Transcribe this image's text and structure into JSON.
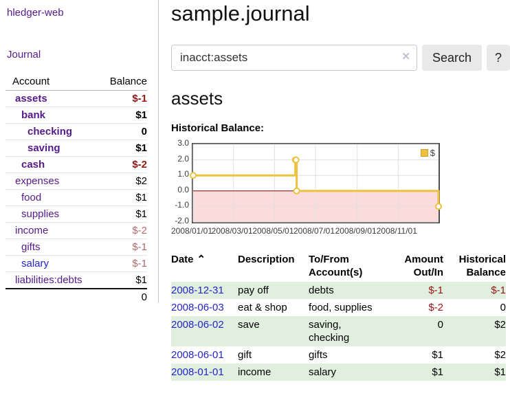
{
  "app": {
    "brand": "hledger-web"
  },
  "sidebar": {
    "journal_link": "Journal",
    "accounts": {
      "col_account": "Account",
      "col_balance": "Balance",
      "rows": [
        {
          "name": "assets",
          "balance": "$-1",
          "indent": 0,
          "bold": true,
          "name_style": "purple",
          "balance_style": "neg-strong"
        },
        {
          "name": "bank",
          "balance": "$1",
          "indent": 1,
          "bold": true,
          "name_style": "purple",
          "balance_style": "plain"
        },
        {
          "name": "checking",
          "balance": "0",
          "indent": 2,
          "bold": true,
          "name_style": "purple",
          "balance_style": "plain"
        },
        {
          "name": "saving",
          "balance": "$1",
          "indent": 2,
          "bold": true,
          "name_style": "purple",
          "balance_style": "plain"
        },
        {
          "name": "cash",
          "balance": "$-2",
          "indent": 1,
          "bold": true,
          "name_style": "purple",
          "balance_style": "neg-strong"
        },
        {
          "name": "expenses",
          "balance": "$2",
          "indent": 0,
          "bold": false,
          "name_style": "purple",
          "balance_style": "plain"
        },
        {
          "name": "food",
          "balance": "$1",
          "indent": 1,
          "bold": false,
          "name_style": "purple",
          "balance_style": "plain"
        },
        {
          "name": "supplies",
          "balance": "$1",
          "indent": 1,
          "bold": false,
          "name_style": "purple",
          "balance_style": "plain"
        },
        {
          "name": "income",
          "balance": "$-2",
          "indent": 0,
          "bold": false,
          "name_style": "purple",
          "balance_style": "neg-muted"
        },
        {
          "name": "gifts",
          "balance": "$-1",
          "indent": 1,
          "bold": false,
          "name_style": "purple",
          "balance_style": "neg-muted"
        },
        {
          "name": "salary",
          "balance": "$-1",
          "indent": 1,
          "bold": false,
          "name_style": "blue",
          "balance_style": "neg-muted"
        },
        {
          "name": "liabilities:debts",
          "balance": "$1",
          "indent": 0,
          "bold": false,
          "name_style": "purple",
          "balance_style": "plain"
        }
      ],
      "total": "0"
    }
  },
  "main": {
    "title": "sample.journal",
    "search": {
      "value": "inacct:assets",
      "clear_icon": "✕",
      "search_button": "Search",
      "help_button": "?"
    },
    "account_heading": "assets",
    "chart_title": "Historical Balance:"
  },
  "chart_data": {
    "type": "line",
    "mode": "step-after",
    "title": "Historical Balance:",
    "legend": "$",
    "legend_position": "top-right",
    "grid": true,
    "x_range": [
      "2008-01-01",
      "2008-12-31"
    ],
    "y_range": [
      -2,
      3
    ],
    "x_ticks": [
      "2008/01/01",
      "2008/03/01",
      "2008/05/01",
      "2008/07/01",
      "2008/09/01",
      "2008/11/01"
    ],
    "y_ticks": [
      "3.0",
      "2.0",
      "1.0",
      "0.0",
      "-1.0",
      "-2.0"
    ],
    "series": [
      {
        "name": "$",
        "color": "#edc240",
        "points": [
          {
            "date": "2008-01-01",
            "value": 1
          },
          {
            "date": "2008-06-01",
            "value": 2
          },
          {
            "date": "2008-06-02",
            "value": 2
          },
          {
            "date": "2008-06-03",
            "value": 0
          },
          {
            "date": "2008-12-31",
            "value": -1
          }
        ]
      }
    ],
    "grid_color": "#e0e0e0",
    "zero_line_color": "#8b0000",
    "negative_region_color": "#fbdcdc",
    "border_color": "#4d4d4d"
  },
  "register": {
    "headers": {
      "date": "Date",
      "sort_icon": "⌃",
      "description": "Description",
      "account": "To/From Account(s)",
      "amount": "Amount Out/In",
      "balance": "Historical Balance"
    },
    "rows": [
      {
        "date": "2008-12-31",
        "description": "pay off",
        "accounts": "debts",
        "amount": "$-1",
        "balance": "$-1"
      },
      {
        "date": "2008-06-03",
        "description": "eat & shop",
        "accounts": "food, supplies",
        "amount": "$-2",
        "balance": "0"
      },
      {
        "date": "2008-06-02",
        "description": "save",
        "accounts": "saving, checking",
        "amount": "0",
        "balance": "$2"
      },
      {
        "date": "2008-06-01",
        "description": "gift",
        "accounts": "gifts",
        "amount": "$1",
        "balance": "$2"
      },
      {
        "date": "2008-01-01",
        "description": "income",
        "accounts": "salary",
        "amount": "$1",
        "balance": "$1"
      }
    ]
  },
  "colors": {
    "link_purple": "#551a8b",
    "link_blue": "#2424cc",
    "negative_strong": "#991414",
    "negative_muted": "#b36b6b",
    "row_green": "#e1efdf",
    "series_gold": "#edc240"
  }
}
